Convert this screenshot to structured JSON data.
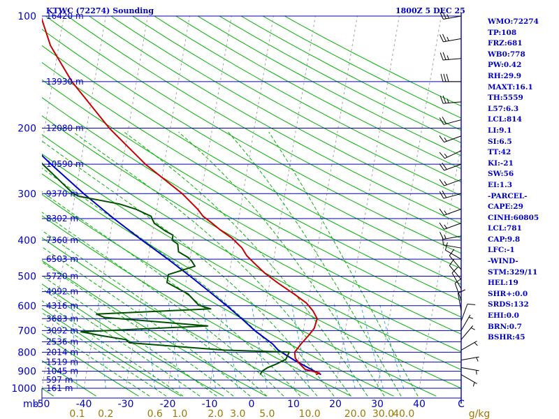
{
  "header": {
    "title": "KTWC (72274) Sounding",
    "valid_time": "1800Z  5 DEC 25"
  },
  "stats": [
    "WMO:72274",
    "TP:108",
    "FRZ:681",
    "WB0:778",
    "PW:0.42",
    "RH:29.9",
    "MAXT:16.1",
    "TH:5559",
    "L57:6.3",
    "LCL:814",
    "LI:9.1",
    "SI:6.5",
    "TT:42",
    "KI:-21",
    "SW:56",
    "EI:1.3",
    "-PARCEL-",
    "CAPE:29",
    "CINH:60805",
    "LCL:781",
    "CAP:9.8",
    "LFC:-1",
    "-WIND-",
    "STM:329/11",
    "HEL:19",
    "SHR+:0.0",
    "SRDS:132",
    "EHI:0.0",
    "BRN:0.7",
    "BSHR:45"
  ],
  "colors": {
    "frame": "#0000b0",
    "dry_adiabat": "#00b400",
    "moist_adiabat": "#00b400",
    "mixing_ratio": "#38a8d8",
    "isotherm": "#a0a0a0",
    "temperature": "#c80000",
    "dewpoint": "#005000",
    "parcel": "#0000c8",
    "label_blue": "#0000c8",
    "label_mix": "#a07800",
    "wind": "#000000"
  },
  "chart_data": {
    "type": "line",
    "title": "KTWC (72274) Sounding",
    "pressure_axis": {
      "unit": "mb",
      "scale": "log",
      "range": [
        1000,
        100
      ],
      "tick_labels": [
        "100",
        "200",
        "300",
        "400",
        "500",
        "600",
        "700",
        "800",
        "900",
        "1000"
      ]
    },
    "temperature_axis": {
      "unit": "°C",
      "skewed": true,
      "range": [
        -50,
        50
      ],
      "tick_labels": [
        "-50",
        "-40",
        "-30",
        "-20",
        "-10",
        "0",
        "10",
        "20",
        "30",
        "40",
        "C"
      ]
    },
    "mixing_ratio_axis": {
      "unit": "g/kg",
      "tick_labels": [
        "0.1",
        "0.2",
        "0.6",
        "1.0",
        "2.0",
        "3.0",
        "5.0",
        "10.0",
        "20.0",
        "30.0",
        "40.0"
      ],
      "unit_label": "g/kg"
    },
    "height_labels": [
      {
        "p": 100,
        "label": "16420 m"
      },
      {
        "p": 150,
        "label": "13930 m"
      },
      {
        "p": 200,
        "label": "12080 m"
      },
      {
        "p": 250,
        "label": "10590 m"
      },
      {
        "p": 300,
        "label": "9370 m"
      },
      {
        "p": 350,
        "label": "8302 m"
      },
      {
        "p": 400,
        "label": "7360 m"
      },
      {
        "p": 450,
        "label": "6503 m"
      },
      {
        "p": 500,
        "label": "5720 m"
      },
      {
        "p": 550,
        "label": "4992 m"
      },
      {
        "p": 600,
        "label": "4316 m"
      },
      {
        "p": 650,
        "label": "3683 m"
      },
      {
        "p": 700,
        "label": "3092 m"
      },
      {
        "p": 750,
        "label": "2536 m"
      },
      {
        "p": 800,
        "label": "2014 m"
      },
      {
        "p": 850,
        "label": "1519 m"
      },
      {
        "p": 900,
        "label": "1045 m"
      },
      {
        "p": 950,
        "label": "597 m"
      },
      {
        "p": 1000,
        "label": "161 m"
      }
    ],
    "series": [
      {
        "name": "Temperature",
        "points": [
          [
            919,
            14.8
          ],
          [
            910,
            15.6
          ],
          [
            890,
            12.0
          ],
          [
            860,
            10.5
          ],
          [
            830,
            9.2
          ],
          [
            800,
            8.8
          ],
          [
            760,
            10.0
          ],
          [
            720,
            11.5
          ],
          [
            690,
            12.5
          ],
          [
            650,
            12.8
          ],
          [
            620,
            11.5
          ],
          [
            590,
            9.6
          ],
          [
            560,
            6.5
          ],
          [
            520,
            1.8
          ],
          [
            490,
            -1.6
          ],
          [
            460,
            -4.6
          ],
          [
            440,
            -6.6
          ],
          [
            420,
            -8.0
          ],
          [
            395,
            -10.8
          ],
          [
            375,
            -14.0
          ],
          [
            358,
            -16.5
          ],
          [
            345,
            -18.6
          ],
          [
            330,
            -20.2
          ],
          [
            300,
            -24.5
          ],
          [
            250,
            -34.5
          ],
          [
            200,
            -44.6
          ],
          [
            150,
            -55.4
          ],
          [
            120,
            -62.0
          ],
          [
            100,
            -65.5
          ]
        ]
      },
      {
        "name": "Dewpoint",
        "points": [
          [
            919,
            1.5
          ],
          [
            900,
            1.8
          ],
          [
            880,
            3.0
          ],
          [
            860,
            5.0
          ],
          [
            835,
            7.0
          ],
          [
            800,
            7.5
          ],
          [
            790,
            -8.0
          ],
          [
            755,
            -31.0
          ],
          [
            740,
            -32.0
          ],
          [
            722,
            -38.0
          ],
          [
            705,
            -43.0
          ],
          [
            680,
            -13.0
          ],
          [
            645,
            -38.0
          ],
          [
            632,
            -40.0
          ],
          [
            612,
            -13.0
          ],
          [
            598,
            -16.0
          ],
          [
            558,
            -19.0
          ],
          [
            520,
            -24.5
          ],
          [
            495,
            -24.5
          ],
          [
            470,
            -18.5
          ],
          [
            455,
            -19.5
          ],
          [
            445,
            -20.5
          ],
          [
            430,
            -23.0
          ],
          [
            410,
            -23.5
          ],
          [
            400,
            -25.0
          ],
          [
            388,
            -25.0
          ],
          [
            378,
            -27.0
          ],
          [
            360,
            -30.0
          ],
          [
            345,
            -31.0
          ],
          [
            330,
            -35.0
          ],
          [
            320,
            -39.0
          ],
          [
            305,
            -49.0
          ],
          [
            300,
            -50.5
          ],
          [
            250,
            -59.0
          ],
          [
            200,
            -68.0
          ],
          [
            150,
            -77.0
          ],
          [
            125,
            -81.0
          ],
          [
            115,
            -83.0
          ]
        ]
      },
      {
        "name": "Parcel",
        "points": [
          [
            919,
            16.0
          ],
          [
            880,
            12.6
          ],
          [
            840,
            9.0
          ],
          [
            790,
            4.8
          ],
          [
            760,
            3.2
          ],
          [
            700,
            -1.6
          ],
          [
            650,
            -5.2
          ],
          [
            600,
            -9.3
          ],
          [
            550,
            -14.0
          ],
          [
            500,
            -19.2
          ],
          [
            450,
            -25.2
          ],
          [
            400,
            -32.2
          ],
          [
            350,
            -39.8
          ],
          [
            300,
            -48.0
          ],
          [
            250,
            -57.0
          ],
          [
            200,
            -67.5
          ],
          [
            150,
            -79.5
          ],
          [
            110,
            -91.0
          ]
        ]
      }
    ],
    "wind_barbs": [
      {
        "p": 100,
        "dir": 260,
        "spd": 25
      },
      {
        "p": 115,
        "dir": 260,
        "spd": 25
      },
      {
        "p": 130,
        "dir": 265,
        "spd": 25
      },
      {
        "p": 150,
        "dir": 270,
        "spd": 30
      },
      {
        "p": 170,
        "dir": 265,
        "spd": 25
      },
      {
        "p": 190,
        "dir": 255,
        "spd": 20
      },
      {
        "p": 210,
        "dir": 250,
        "spd": 15
      },
      {
        "p": 230,
        "dir": 245,
        "spd": 15
      },
      {
        "p": 250,
        "dir": 250,
        "spd": 20
      },
      {
        "p": 275,
        "dir": 250,
        "spd": 15
      },
      {
        "p": 300,
        "dir": 255,
        "spd": 20
      },
      {
        "p": 330,
        "dir": 250,
        "spd": 15
      },
      {
        "p": 360,
        "dir": 250,
        "spd": 15
      },
      {
        "p": 390,
        "dir": 260,
        "spd": 15
      },
      {
        "p": 420,
        "dir": 280,
        "spd": 10
      },
      {
        "p": 450,
        "dir": 300,
        "spd": 10
      },
      {
        "p": 480,
        "dir": 320,
        "spd": 10
      },
      {
        "p": 510,
        "dir": 320,
        "spd": 10
      },
      {
        "p": 540,
        "dir": 330,
        "spd": 10
      },
      {
        "p": 580,
        "dir": 340,
        "spd": 10
      },
      {
        "p": 620,
        "dir": 350,
        "spd": 10
      },
      {
        "p": 660,
        "dir": 20,
        "spd": 10
      },
      {
        "p": 700,
        "dir": 30,
        "spd": 5
      },
      {
        "p": 740,
        "dir": 40,
        "spd": 5
      },
      {
        "p": 790,
        "dir": 60,
        "spd": 5
      },
      {
        "p": 840,
        "dir": 80,
        "spd": 5
      },
      {
        "p": 880,
        "dir": 100,
        "spd": 5
      },
      {
        "p": 919,
        "dir": 120,
        "spd": 5
      }
    ],
    "grid": true
  }
}
